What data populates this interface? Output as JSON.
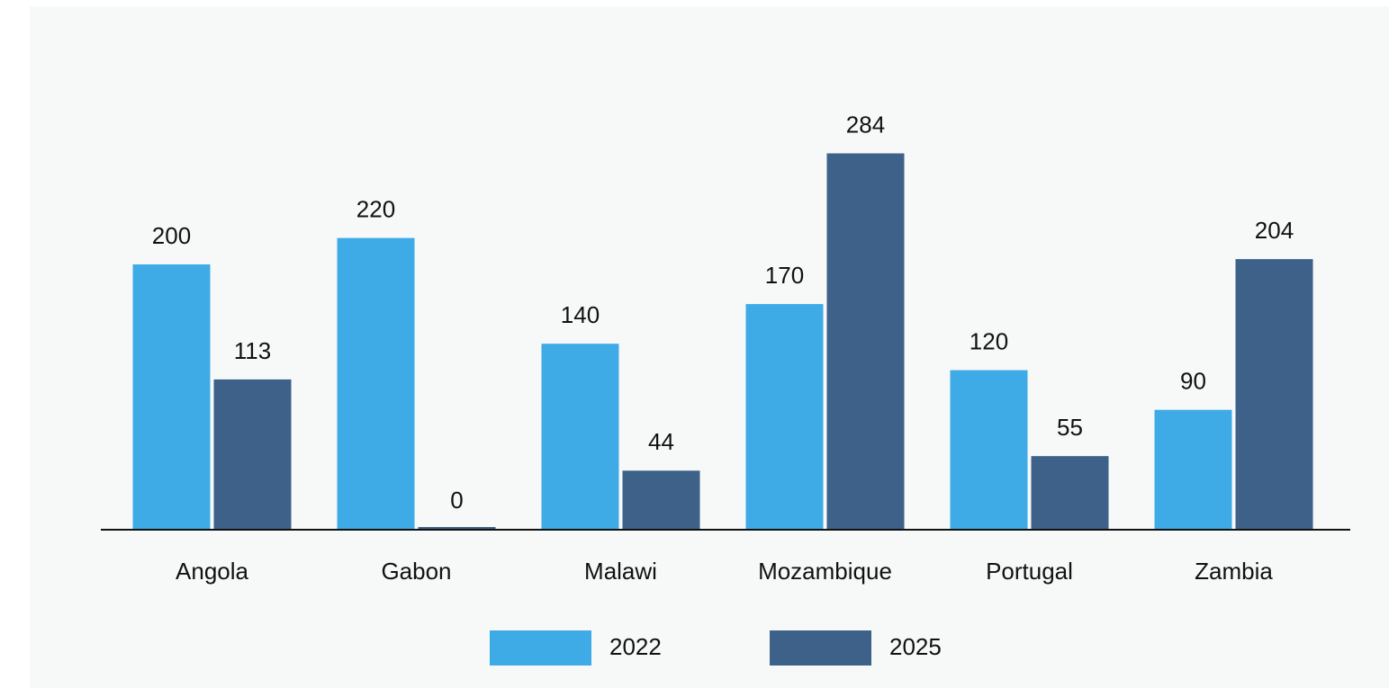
{
  "chart_data": {
    "type": "bar",
    "categories": [
      "Angola",
      "Gabon",
      "Malawi",
      "Mozambique",
      "Portugal",
      "Zambia"
    ],
    "series": [
      {
        "name": "2022",
        "color": "#3fabe6",
        "values": [
          200,
          220,
          140,
          170,
          120,
          90
        ]
      },
      {
        "name": "2025",
        "color": "#3d6189",
        "values": [
          113,
          0,
          44,
          284,
          55,
          204
        ]
      }
    ],
    "ylim": [
      0,
      300
    ],
    "legend": "bottom"
  }
}
